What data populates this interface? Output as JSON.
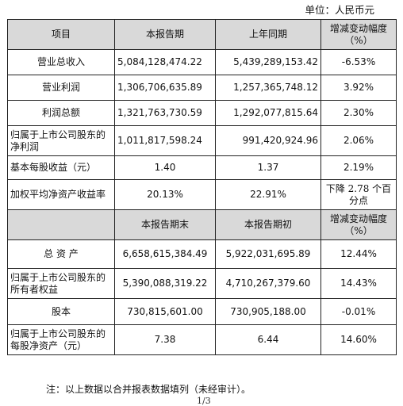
{
  "unit_label": "单位：人民币元",
  "header1": {
    "item": "项目",
    "current": "本报告期",
    "previous": "上年同期",
    "change": "增减变动幅度（%）"
  },
  "rows1": [
    {
      "label": "营业总收入",
      "current": "5,084,128,474.22",
      "previous": "5,439,289,153.42",
      "change": "-6.53%"
    },
    {
      "label": "营业利润",
      "current": "1,306,706,635.89",
      "previous": "1,257,365,748.12",
      "change": "3.92%"
    },
    {
      "label": "利润总额",
      "current": "1,321,763,730.59",
      "previous": "1,292,077,815.64",
      "change": "2.30%"
    },
    {
      "label": "归属于上市公司股东的净利润",
      "current": "1,011,817,598.24",
      "previous": "991,420,924.96",
      "change": "2.06%"
    },
    {
      "label": "基本每股收益（元）",
      "current": "1.40",
      "previous": "1.37",
      "change": "2.19%"
    },
    {
      "label": "加权平均净资产收益率",
      "current": "20.13%",
      "previous": "22.91%",
      "change": "下降 2.78 个百分点"
    }
  ],
  "header2": {
    "current": "本报告期末",
    "previous": "本报告期初",
    "change": "增减变动幅度（%）"
  },
  "rows2": [
    {
      "label": "总 资 产",
      "current": "6,658,615,384.49",
      "previous": "5,922,031,695.89",
      "change": "12.44%"
    },
    {
      "label": "归属于上市公司股东的所有者权益",
      "current": "5,390,088,319.22",
      "previous": "4,710,267,379.60",
      "change": "14.43%"
    },
    {
      "label": "股本",
      "current": "730,815,601.00",
      "previous": "730,905,188.00",
      "change": "-0.01%"
    },
    {
      "label": "归属于上市公司股东的每股净资产（元）",
      "current": "7.38",
      "previous": "6.44",
      "change": "14.60%"
    }
  ],
  "note": "注：以上数据以合并报表数据填列（未经审计）。",
  "page_number": "1/3"
}
